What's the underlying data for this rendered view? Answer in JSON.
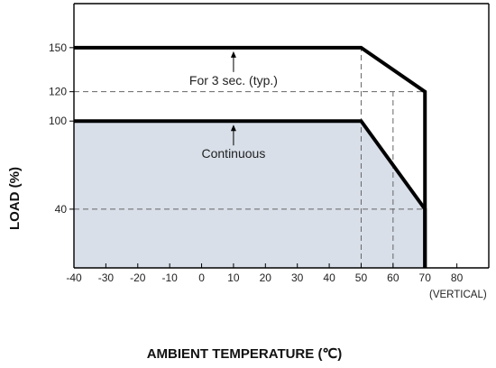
{
  "chart_data": {
    "type": "line",
    "title": "",
    "xlabel": "AMBIENT TEMPERATURE (℃)",
    "ylabel": "LOAD (%)",
    "x_axis_note": "(VERTICAL)",
    "xlim": [
      -40,
      90
    ],
    "ylim": [
      0,
      180
    ],
    "x_ticks": [
      -40,
      -30,
      -20,
      -10,
      0,
      10,
      20,
      30,
      40,
      50,
      60,
      70,
      80
    ],
    "y_ticks": [
      40,
      100,
      120,
      150
    ],
    "grid": false,
    "series": [
      {
        "values_x": [
          -40,
          50,
          70,
          70
        ],
        "values_y": [
          150,
          150,
          120,
          0
        ]
      },
      {
        "values_x": [
          -40,
          50,
          70,
          70
        ],
        "values_y": [
          100,
          100,
          40,
          0
        ],
        "fill": true
      }
    ],
    "reference_lines": [
      {
        "y": 120,
        "x_from": -40,
        "x_to": 70
      },
      {
        "y": 40,
        "x_from": -40,
        "x_to": 70
      },
      {
        "x": 50,
        "y_from": 0,
        "y_to": 150
      },
      {
        "x": 60,
        "y_from": 0,
        "y_to": 120
      }
    ],
    "annotations": [
      {
        "text": "For 3 sec. (typ.)",
        "x": 10,
        "y": 150
      },
      {
        "text": "Continuous",
        "x": 10,
        "y": 100
      }
    ],
    "colors": {
      "fill": "#d8dfe9",
      "line": "#000000",
      "dash": "#666666"
    }
  }
}
